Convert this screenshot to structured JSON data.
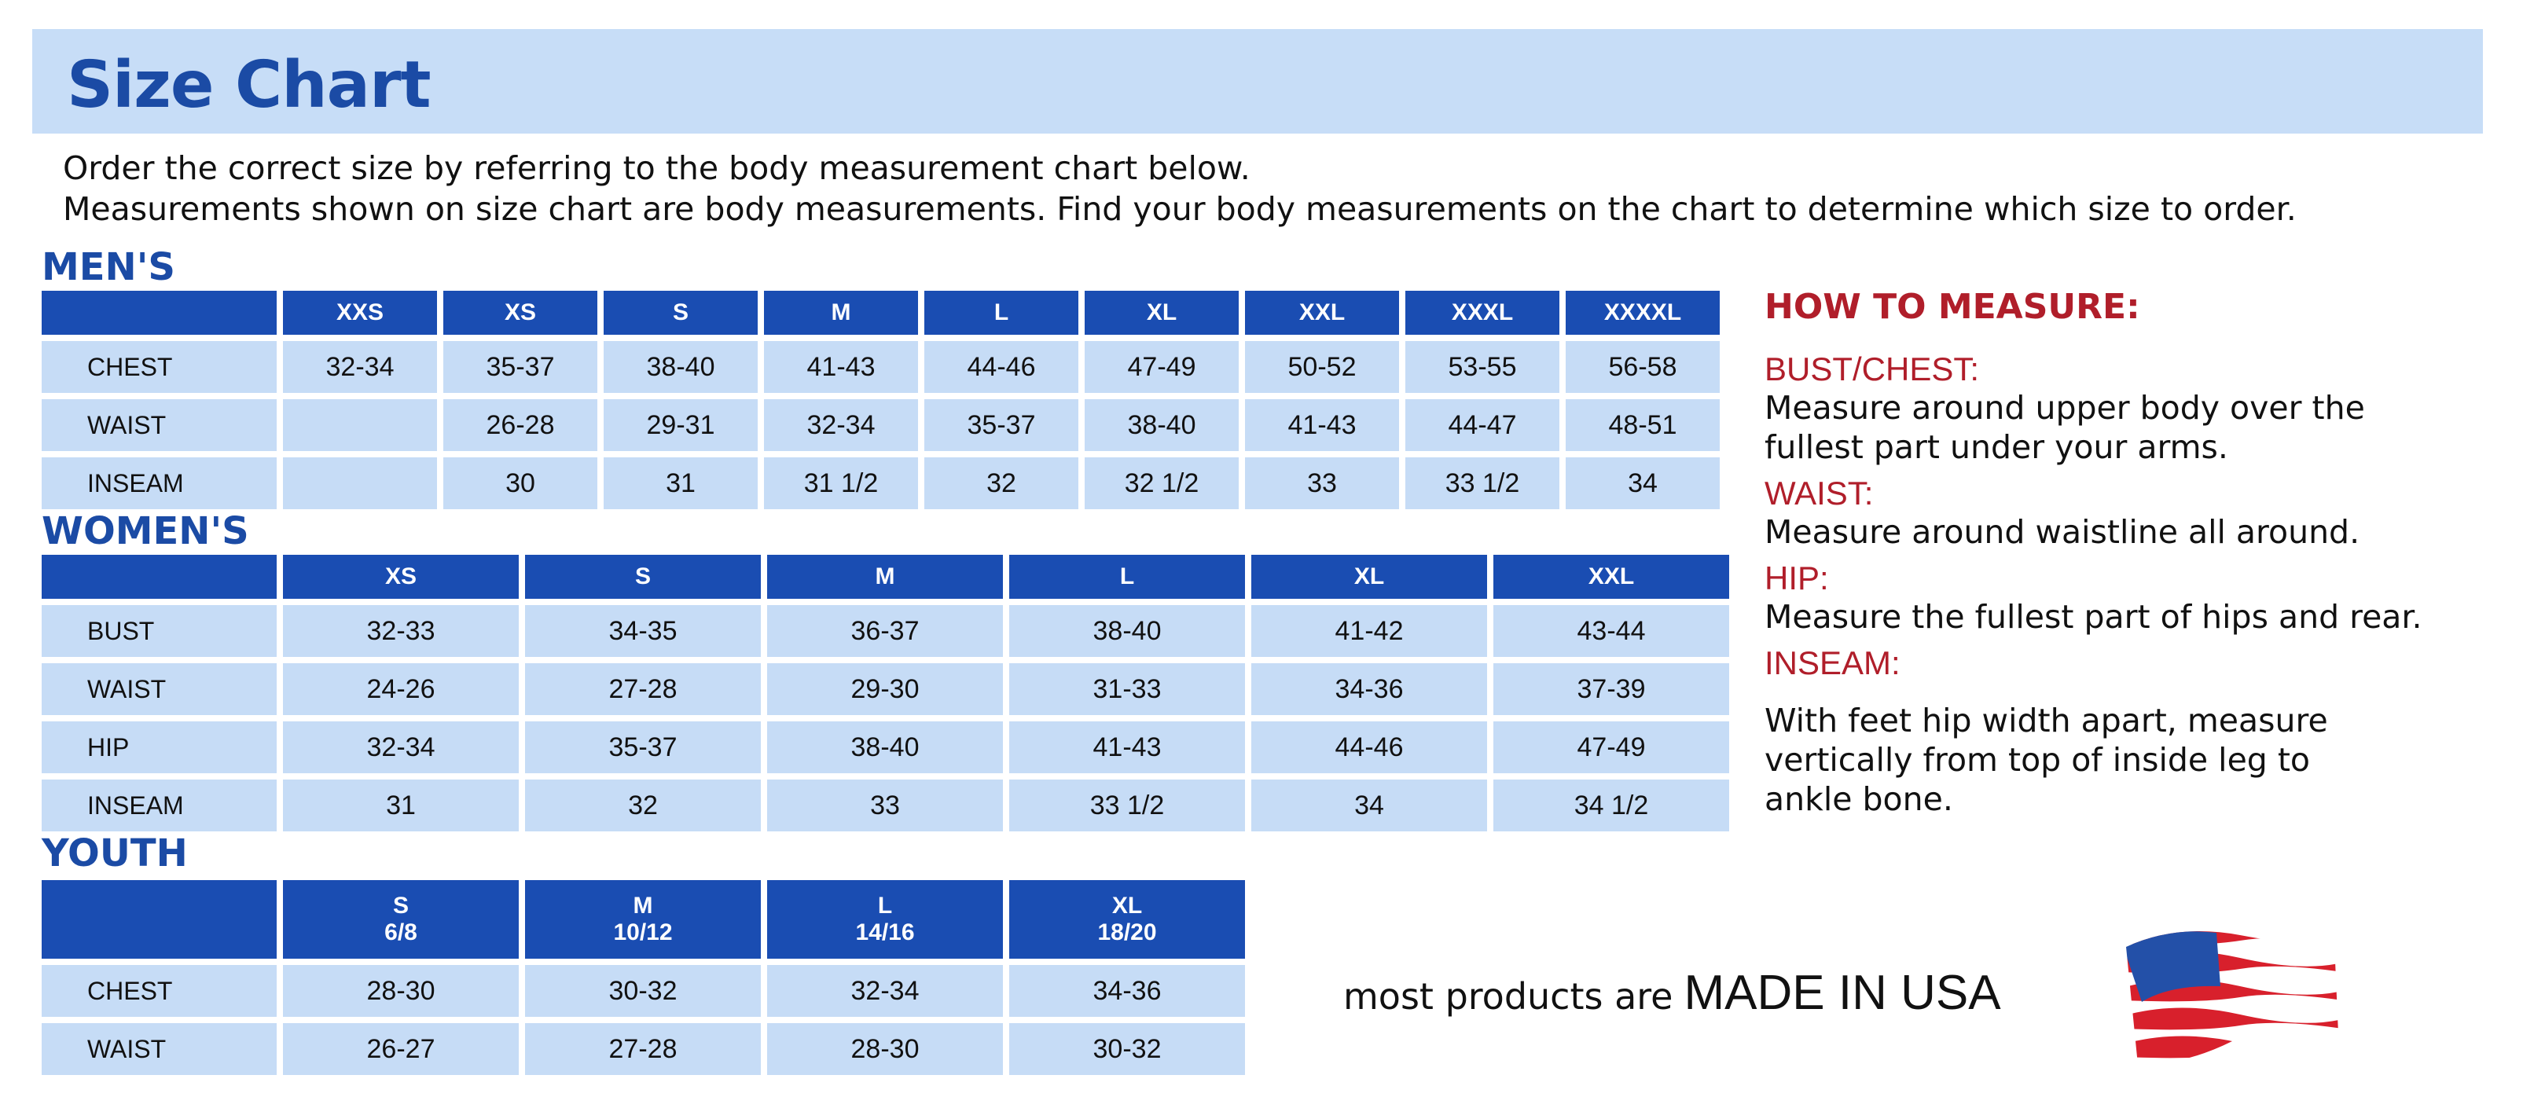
{
  "title": "Size Chart",
  "intro": [
    "Order the correct size by referring to the body measurement chart below.",
    "Measurements shown on size chart are body measurements.  Find your body measurements on the chart to determine which size to order."
  ],
  "mens": {
    "label": "MEN'S",
    "sizes": [
      [
        "XXS"
      ],
      [
        "XS"
      ],
      [
        "S"
      ],
      [
        "M"
      ],
      [
        "L"
      ],
      [
        "XL"
      ],
      [
        "XXL"
      ],
      [
        "XXXL"
      ],
      [
        "XXXXL"
      ]
    ],
    "rows": [
      {
        "name": "CHEST",
        "values": [
          "32-34",
          "35-37",
          "38-40",
          "41-43",
          "44-46",
          "47-49",
          "50-52",
          "53-55",
          "56-58"
        ]
      },
      {
        "name": "WAIST",
        "values": [
          "",
          "26-28",
          "29-31",
          "32-34",
          "35-37",
          "38-40",
          "41-43",
          "44-47",
          "48-51"
        ]
      },
      {
        "name": "INSEAM",
        "values": [
          "",
          "30",
          "31",
          "31 1/2",
          "32",
          "32 1/2",
          "33",
          "33 1/2",
          "34"
        ]
      }
    ]
  },
  "womens": {
    "label": "WOMEN'S",
    "sizes": [
      [
        "XS"
      ],
      [
        "S"
      ],
      [
        "M"
      ],
      [
        "L"
      ],
      [
        "XL"
      ],
      [
        "XXL"
      ]
    ],
    "rows": [
      {
        "name": "BUST",
        "values": [
          "32-33",
          "34-35",
          "36-37",
          "38-40",
          "41-42",
          "43-44"
        ]
      },
      {
        "name": "WAIST",
        "values": [
          "24-26",
          "27-28",
          "29-30",
          "31-33",
          "34-36",
          "37-39"
        ]
      },
      {
        "name": "HIP",
        "values": [
          "32-34",
          "35-37",
          "38-40",
          "41-43",
          "44-46",
          "47-49"
        ]
      },
      {
        "name": "INSEAM",
        "values": [
          "31",
          "32",
          "33",
          "33 1/2",
          "34",
          "34 1/2"
        ]
      }
    ]
  },
  "youth": {
    "label": "YOUTH",
    "sizes": [
      [
        "S",
        "6/8"
      ],
      [
        "M",
        "10/12"
      ],
      [
        "L",
        "14/16"
      ],
      [
        "XL",
        "18/20"
      ]
    ],
    "rows": [
      {
        "name": "CHEST",
        "values": [
          "28-30",
          "30-32",
          "32-34",
          "34-36"
        ]
      },
      {
        "name": "WAIST",
        "values": [
          "26-27",
          "27-28",
          "28-30",
          "30-32"
        ]
      }
    ]
  },
  "how_to_measure": {
    "title": "HOW TO MEASURE:",
    "items": [
      {
        "heading": "BUST/CHEST:",
        "text": "Measure around upper body over the fullest part under your arms."
      },
      {
        "heading": "WAIST:",
        "text": "Measure around waistline all around."
      },
      {
        "heading": "HIP:",
        "text": "Measure the fullest part of hips and rear."
      },
      {
        "heading": "INSEAM:",
        "text": "With feet hip width apart, measure vertically from top of inside leg to ankle bone."
      }
    ]
  },
  "made_in_usa": {
    "prefix": "most products are",
    "emphasis": "MADE IN USA",
    "icon": "us-flag-icon"
  },
  "colors": {
    "header": "#1a4db2",
    "cell": "#c6dcf6",
    "title": "#1b4ba5",
    "accent_red": "#b01e2a",
    "banner": "#c7ddf7"
  }
}
